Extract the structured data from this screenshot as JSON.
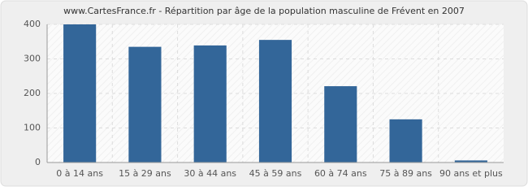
{
  "chart_data": {
    "type": "bar",
    "title": "www.CartesFrance.fr - Répartition par âge de la population masculine de Frévent en 2007",
    "categories": [
      "0 à 14 ans",
      "15 à 29 ans",
      "30 à 44 ans",
      "45 à 59 ans",
      "60 à 74 ans",
      "75 à 89 ans",
      "90 ans et plus"
    ],
    "values": [
      400,
      335,
      339,
      355,
      221,
      125,
      6
    ],
    "color": "#336699",
    "ylim": [
      0,
      400
    ],
    "yticks": [
      0,
      100,
      200,
      300,
      400
    ],
    "grid": true
  }
}
